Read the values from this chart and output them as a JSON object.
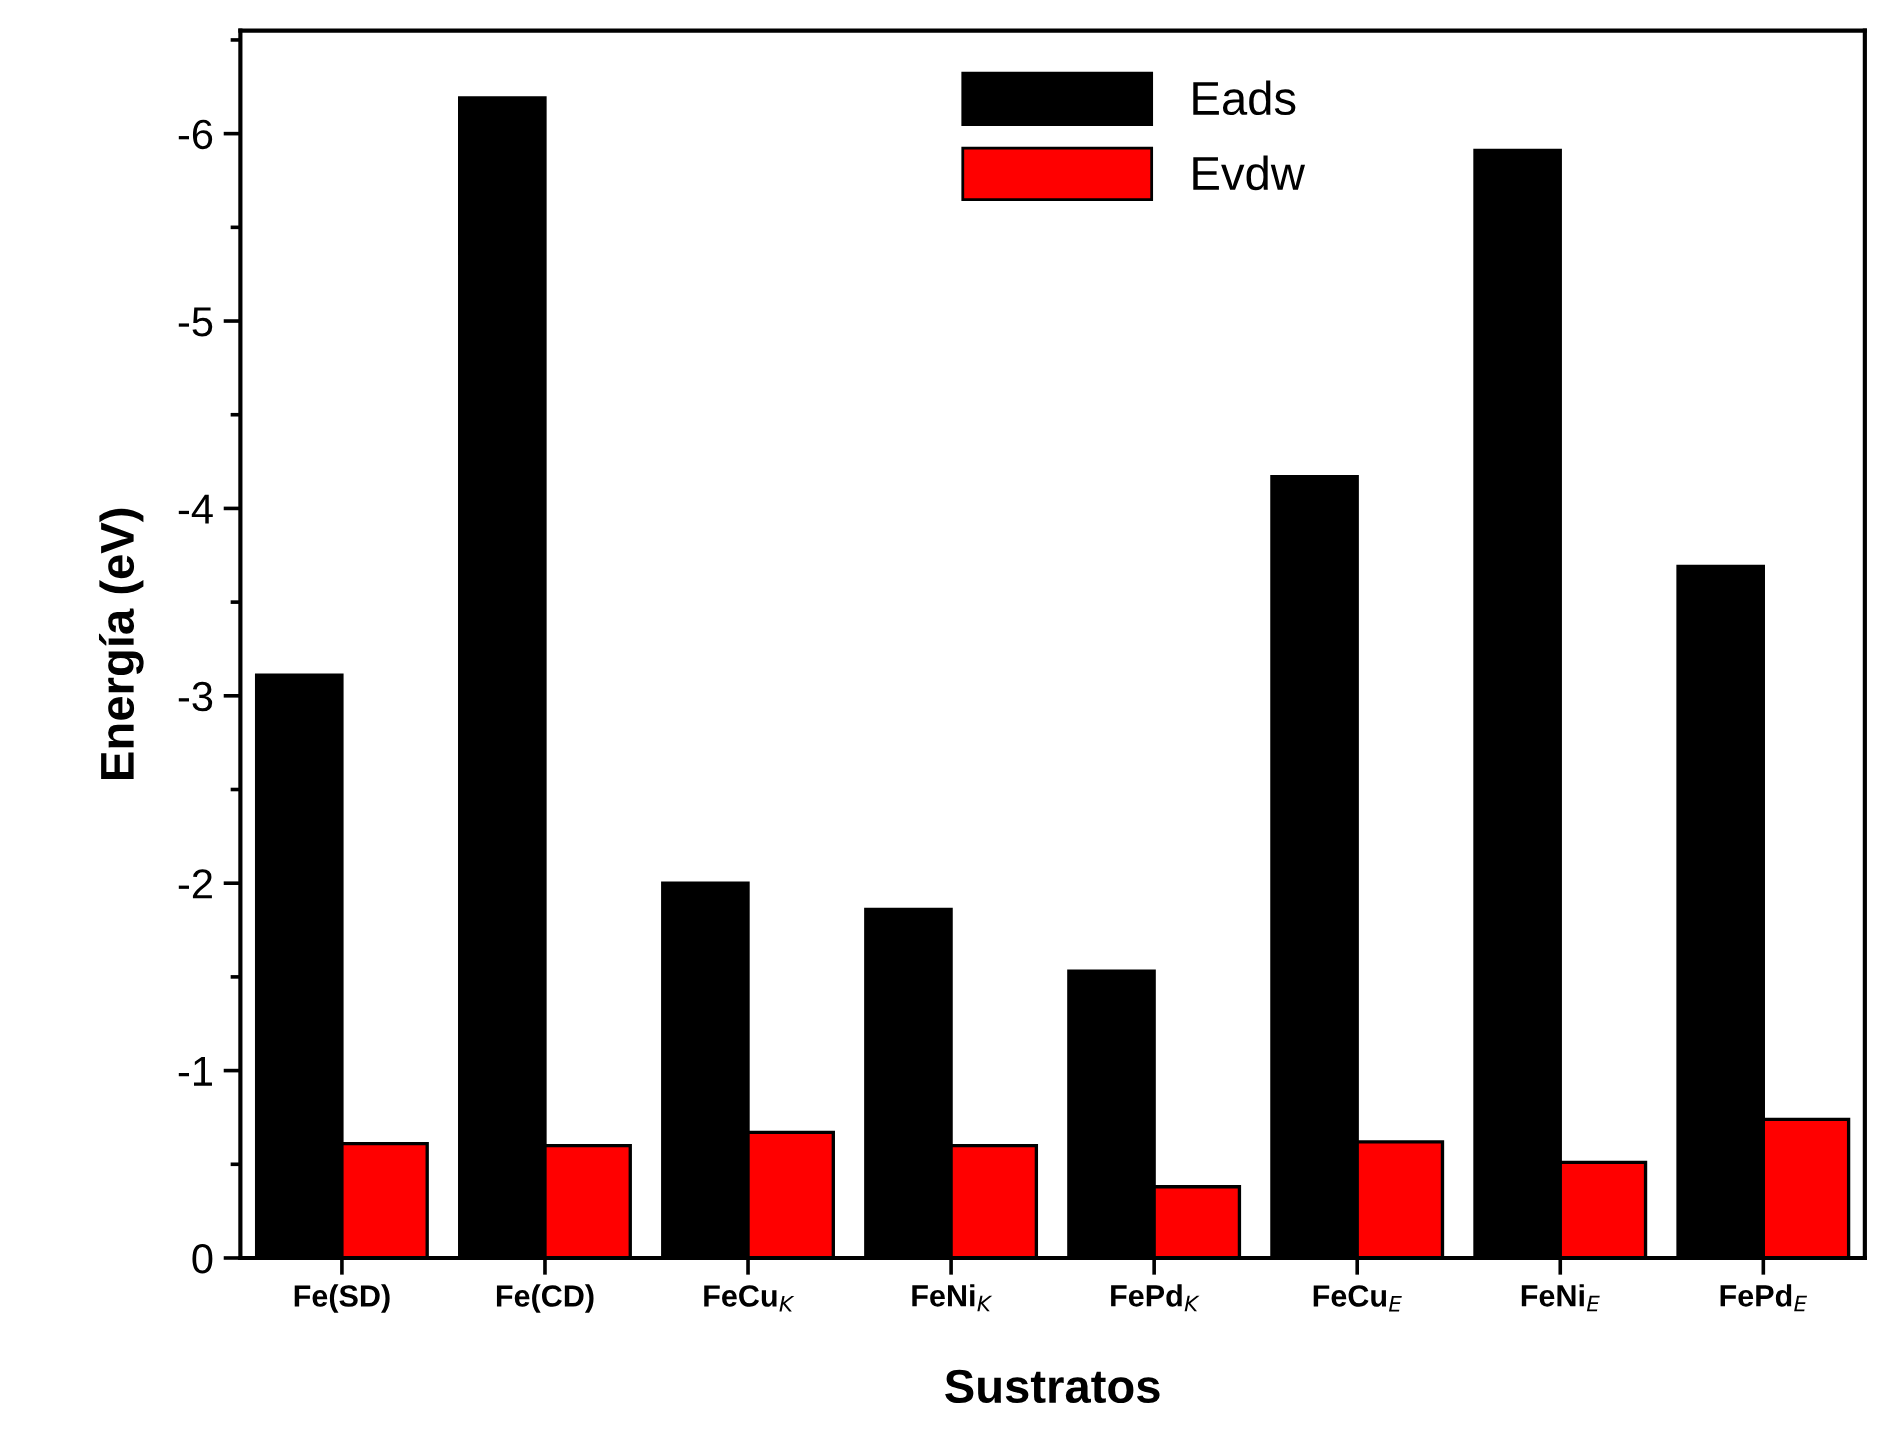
{
  "chart_data": {
    "type": "bar",
    "xlabel": "Sustratos",
    "ylabel": "Energía (eV)",
    "categories": [
      "Fe(SD)",
      "Fe(CD)",
      "FeCu$_{K}$",
      "FeNi$_{K}$",
      "FePd$_{K}$",
      "FeCu$_{E}$",
      "FeNi$_{E}$",
      "FePd$_{E}$"
    ],
    "series": [
      {
        "name": "Eads",
        "color": "#000000",
        "values": [
          -3.11,
          -6.19,
          -2.0,
          -1.86,
          -1.53,
          -4.17,
          -5.91,
          -3.69
        ]
      },
      {
        "name": "Evdw",
        "color": "#ff0000",
        "values": [
          -0.61,
          -0.6,
          -0.67,
          -0.6,
          -0.38,
          -0.62,
          -0.51,
          -0.74
        ]
      }
    ],
    "ylim": [
      0,
      -6.55
    ],
    "yticks": [
      0,
      {
        "value": -0.5,
        "label": null
      },
      -1,
      {
        "value": -1.5,
        "label": null
      },
      -2,
      {
        "value": -2.5,
        "label": null
      },
      -3,
      {
        "value": -3.5,
        "label": null
      },
      -4,
      {
        "value": -4.5,
        "label": null
      },
      -5,
      {
        "value": -5.5,
        "label": null
      },
      -6,
      {
        "value": -6.5,
        "label": null
      }
    ],
    "legend": "top center",
    "grid": false
  }
}
